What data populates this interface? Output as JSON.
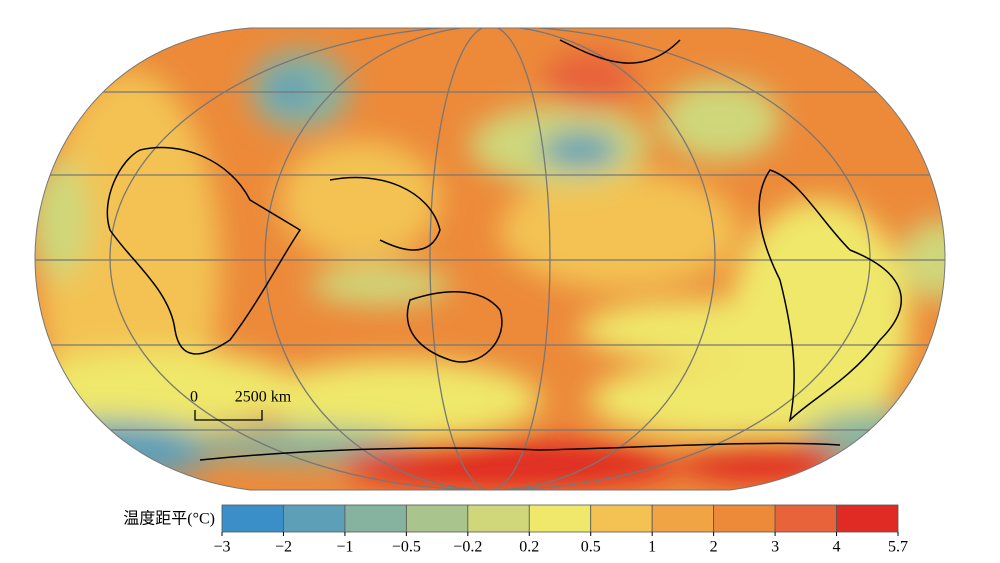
{
  "legend": {
    "title": "温度距平(°C)",
    "ticks": [
      {
        "value": -3,
        "label": "−3"
      },
      {
        "value": -2,
        "label": "−2"
      },
      {
        "value": -1,
        "label": "−1"
      },
      {
        "value": -0.5,
        "label": "−0.5"
      },
      {
        "value": -0.2,
        "label": "−0.2"
      },
      0.2,
      0.5,
      1,
      2,
      3,
      4,
      5.7
    ],
    "colors": [
      "#3a8fc8",
      "#5e9fb8",
      "#86b3a0",
      "#a9c48c",
      "#cfd77a",
      "#efe86a",
      "#f3c252",
      "#f0a443",
      "#ec8a3a",
      "#e8623a",
      "#e02a24"
    ]
  },
  "scale_bar": {
    "start": "0",
    "length": "2500 km"
  }
}
